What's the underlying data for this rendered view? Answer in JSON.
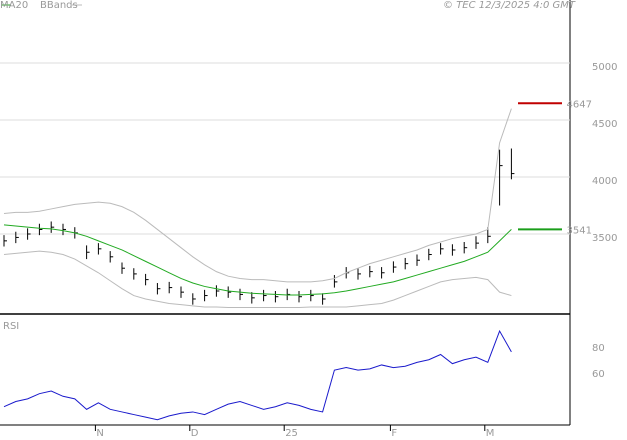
{
  "chart_data": [
    {
      "type": "ohlc",
      "source": "© TEC 12/3/2025 4:0 GMT",
      "categories": [
        null,
        null,
        null,
        null,
        null,
        null,
        null,
        null,
        "N",
        null,
        null,
        null,
        null,
        null,
        null,
        null,
        "D",
        null,
        null,
        null,
        null,
        null,
        null,
        null,
        "25",
        null,
        null,
        null,
        null,
        null,
        null,
        null,
        null,
        "F",
        null,
        null,
        null,
        null,
        null,
        null,
        null,
        "M",
        null,
        null
      ],
      "high": [
        3490,
        3520,
        3550,
        3590,
        3610,
        3590,
        3560,
        3400,
        3420,
        3350,
        3250,
        3200,
        3150,
        3070,
        3080,
        3040,
        2980,
        3010,
        3050,
        3040,
        3020,
        2990,
        3010,
        3000,
        3020,
        3000,
        3010,
        2980,
        3140,
        3210,
        3200,
        3220,
        3210,
        3260,
        3290,
        3320,
        3370,
        3420,
        3410,
        3430,
        3480,
        3560,
        4240,
        4250
      ],
      "low": [
        3390,
        3420,
        3450,
        3490,
        3510,
        3490,
        3460,
        3280,
        3320,
        3250,
        3150,
        3100,
        3050,
        2970,
        2980,
        2940,
        2880,
        2910,
        2950,
        2940,
        2920,
        2890,
        2910,
        2900,
        2920,
        2900,
        2910,
        2880,
        3030,
        3110,
        3100,
        3120,
        3110,
        3160,
        3190,
        3220,
        3270,
        3320,
        3310,
        3330,
        3370,
        3420,
        3750,
        3980
      ],
      "close": [
        3440,
        3470,
        3500,
        3540,
        3560,
        3540,
        3510,
        3340,
        3370,
        3300,
        3200,
        3150,
        3100,
        3020,
        3030,
        2990,
        2930,
        2960,
        3000,
        2990,
        2970,
        2940,
        2960,
        2950,
        2970,
        2950,
        2960,
        2930,
        3080,
        3160,
        3150,
        3170,
        3160,
        3210,
        3240,
        3270,
        3320,
        3370,
        3360,
        3380,
        3420,
        3480,
        4100,
        4030
      ],
      "color": "#000000",
      "series": [
        {
          "name": "MA20",
          "color": "#22aa22",
          "values": [
            3580,
            3570,
            3560,
            3550,
            3545,
            3530,
            3510,
            3480,
            3440,
            3400,
            3360,
            3310,
            3260,
            3210,
            3160,
            3110,
            3070,
            3040,
            3020,
            3000,
            2990,
            2980,
            2975,
            2970,
            2965,
            2965,
            2970,
            2975,
            2985,
            3000,
            3020,
            3040,
            3060,
            3080,
            3110,
            3140,
            3170,
            3200,
            3230,
            3260,
            3300,
            3340,
            3440,
            3541
          ]
        }
      ],
      "bands": {
        "name": "BBands",
        "color": "#bbbbbb",
        "upper": [
          3680,
          3690,
          3690,
          3700,
          3720,
          3740,
          3760,
          3770,
          3780,
          3770,
          3740,
          3690,
          3620,
          3540,
          3460,
          3380,
          3300,
          3230,
          3170,
          3130,
          3110,
          3100,
          3100,
          3090,
          3080,
          3080,
          3080,
          3090,
          3110,
          3160,
          3200,
          3240,
          3270,
          3300,
          3330,
          3360,
          3400,
          3430,
          3460,
          3480,
          3500,
          3540,
          4300,
          4600
        ],
        "lower": [
          3320,
          3330,
          3340,
          3350,
          3340,
          3320,
          3280,
          3220,
          3160,
          3090,
          3020,
          2960,
          2930,
          2910,
          2890,
          2880,
          2870,
          2860,
          2860,
          2855,
          2855,
          2855,
          2855,
          2855,
          2855,
          2855,
          2860,
          2860,
          2860,
          2860,
          2870,
          2880,
          2890,
          2920,
          2960,
          3000,
          3040,
          3080,
          3100,
          3110,
          3120,
          3100,
          2990,
          2960
        ]
      },
      "levels": [
        {
          "value": 4647,
          "color": "#c00000"
        },
        {
          "value": 3541,
          "color": "#1a9e1a"
        }
      ],
      "ylim": [
        2807,
        5553
      ],
      "yticks": [
        3500,
        4000,
        4500,
        5000
      ],
      "grid": true
    },
    {
      "type": "line",
      "title": "RSI",
      "series": [
        {
          "color": "#1a1acc",
          "values": [
            32,
            36,
            38,
            42,
            44,
            40,
            38,
            30,
            35,
            30,
            28,
            26,
            24,
            22,
            25,
            27,
            28,
            26,
            30,
            34,
            36,
            33,
            30,
            32,
            35,
            33,
            30,
            28,
            60,
            62,
            60,
            61,
            64,
            62,
            63,
            66,
            68,
            72,
            65,
            68,
            70,
            66,
            90,
            74
          ]
        }
      ],
      "ylim": [
        18,
        101.5
      ],
      "yticks": [
        60,
        80
      ]
    }
  ]
}
